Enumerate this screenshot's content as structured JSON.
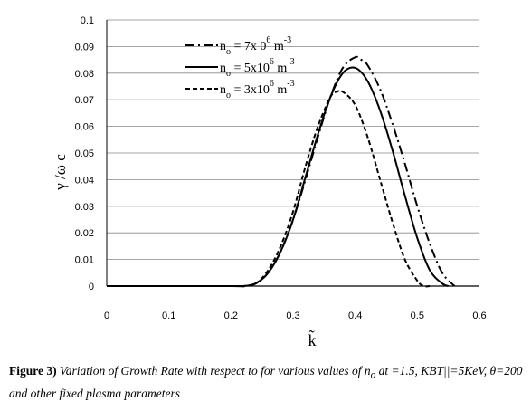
{
  "chart_data": {
    "type": "line",
    "title": "",
    "xlabel": "k̃",
    "ylabel": "γ /ω c",
    "xlim": [
      0,
      0.6
    ],
    "ylim": [
      0,
      0.1
    ],
    "x_ticks": [
      "0",
      "0.1",
      "0.2",
      "0.3",
      "0.4",
      "0.5",
      "0.6"
    ],
    "y_ticks": [
      "0",
      "0.01",
      "0.02",
      "0.03",
      "0.04",
      "0.05",
      "0.06",
      "0.07",
      "0.08",
      "0.09",
      "0.1"
    ],
    "grid": "horizontal",
    "legend_position": "top-center",
    "series": [
      {
        "name": "n o = 7x 0 6 m -3",
        "legend_parts": {
          "base": "n",
          "sub": "o",
          "eq": " = 7x 0",
          "sup": "6",
          "unit": " m",
          "unit_sup": "-3"
        },
        "style": "dash-dot",
        "x": [
          0.2,
          0.22,
          0.24,
          0.26,
          0.28,
          0.3,
          0.32,
          0.34,
          0.36,
          0.38,
          0.4,
          0.41,
          0.42,
          0.44,
          0.46,
          0.48,
          0.5,
          0.52,
          0.54,
          0.56
        ],
        "values": [
          0,
          0,
          0.001,
          0.005,
          0.013,
          0.025,
          0.04,
          0.056,
          0.071,
          0.082,
          0.086,
          0.085,
          0.083,
          0.074,
          0.061,
          0.046,
          0.03,
          0.016,
          0.005,
          0
        ]
      },
      {
        "name": "n o = 5x10 6 m -3",
        "legend_parts": {
          "base": "n",
          "sub": "o",
          "eq": " = 5x10",
          "sup": "6",
          "unit": " m",
          "unit_sup": "-3"
        },
        "style": "solid",
        "x": [
          0.2,
          0.22,
          0.24,
          0.26,
          0.28,
          0.3,
          0.32,
          0.34,
          0.36,
          0.38,
          0.4,
          0.42,
          0.44,
          0.46,
          0.48,
          0.5,
          0.52,
          0.54,
          0.55
        ],
        "values": [
          0,
          0,
          0.001,
          0.005,
          0.013,
          0.025,
          0.041,
          0.057,
          0.071,
          0.08,
          0.082,
          0.077,
          0.066,
          0.051,
          0.034,
          0.018,
          0.006,
          0.001,
          0
        ]
      },
      {
        "name": "n o = 3x10 6 m -3",
        "legend_parts": {
          "base": "n",
          "sub": "o",
          "eq": " = 3x10",
          "sup": "6",
          "unit": " m",
          "unit_sup": "-3"
        },
        "style": "dashed",
        "x": [
          0.2,
          0.22,
          0.24,
          0.26,
          0.28,
          0.3,
          0.32,
          0.34,
          0.36,
          0.37,
          0.38,
          0.4,
          0.42,
          0.44,
          0.46,
          0.48,
          0.5,
          0.51,
          0.52
        ],
        "values": [
          0,
          0,
          0.001,
          0.006,
          0.015,
          0.028,
          0.045,
          0.06,
          0.071,
          0.073,
          0.073,
          0.068,
          0.056,
          0.04,
          0.024,
          0.01,
          0.002,
          0,
          0
        ]
      }
    ]
  },
  "caption": {
    "label": "Figure 3)",
    "text": " Variation of Growth Rate with respect to for various values of n",
    "sub": "o",
    "text2": " at =1.5, KBT||=5KeV, θ=200 and other fixed plasma parameters"
  }
}
